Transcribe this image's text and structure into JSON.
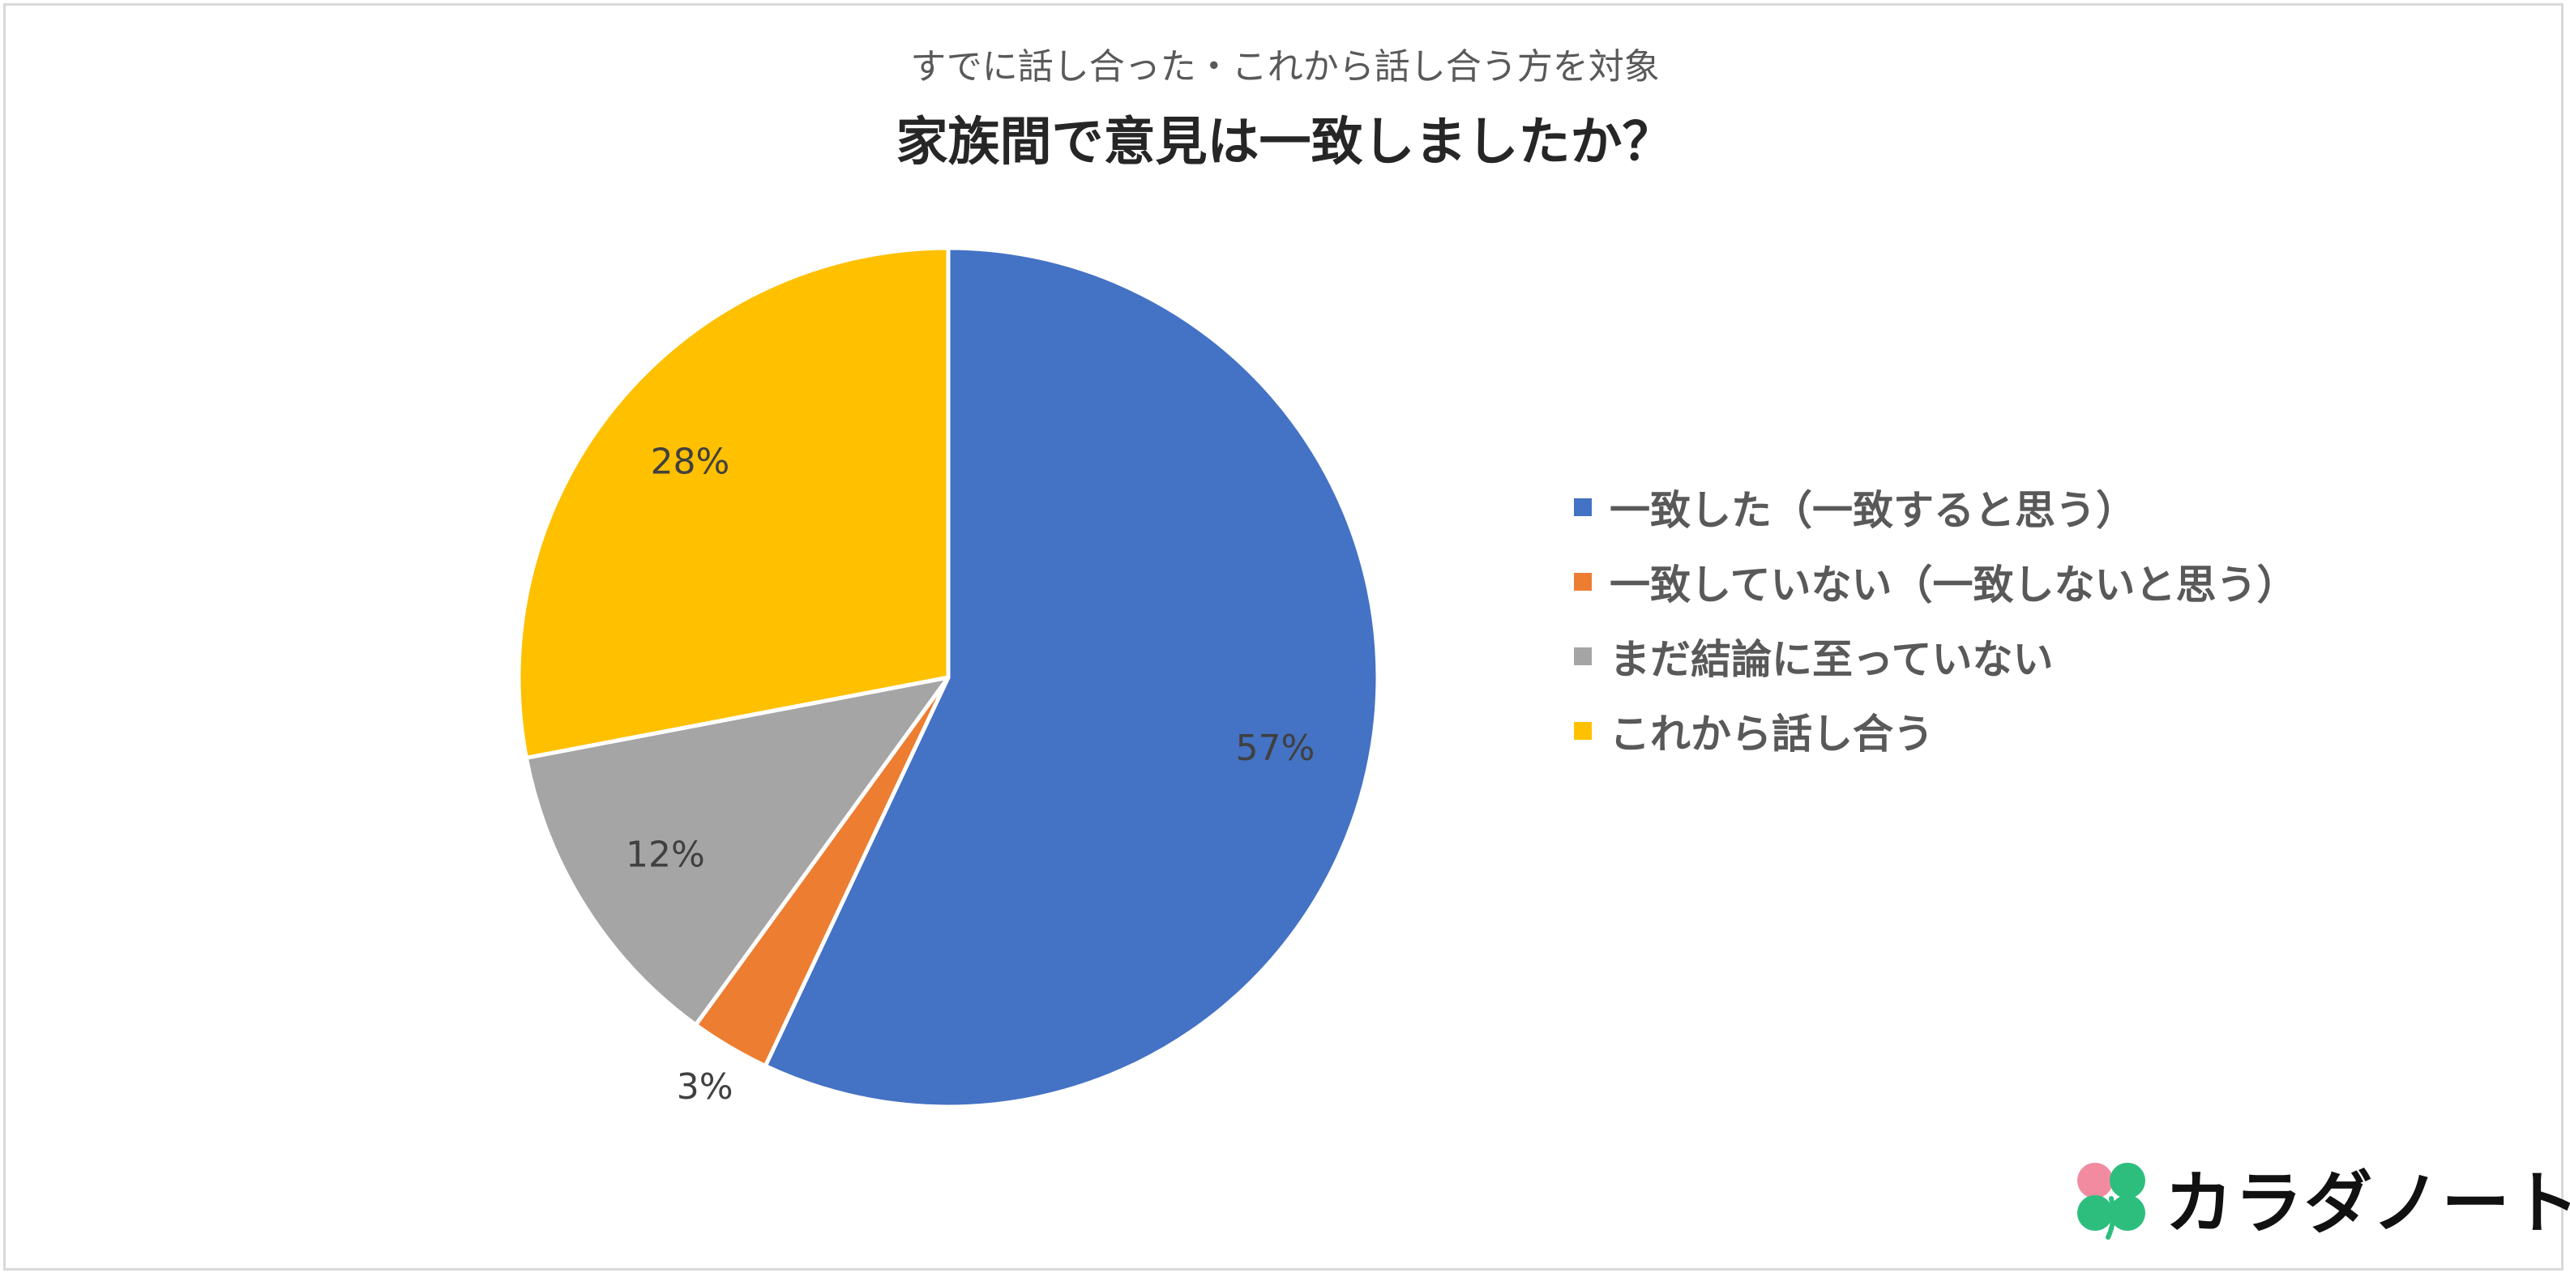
{
  "chart_data": {
    "type": "pie",
    "subtitle": "すでに話し合った・これから話し合う方を対象",
    "title": "家族間で意見は一致しましたか？",
    "slices": [
      {
        "label": "一致した（一致すると思う）",
        "value": 57,
        "data_label": "57%",
        "color": "#4472C4"
      },
      {
        "label": "一致していない（一致しないと思う）",
        "value": 3,
        "data_label": "3%",
        "color": "#ED7D31"
      },
      {
        "label": "まだ結論に至っていない",
        "value": 12,
        "data_label": "12%",
        "color": "#A5A5A5"
      },
      {
        "label": "これから話し合う",
        "value": 28,
        "data_label": "28%",
        "color": "#FFC000"
      }
    ],
    "start_angle_deg": 0,
    "direction": "clockwise",
    "legend_position": "right"
  },
  "logo": {
    "text": "カラダノート",
    "icon": "clover-icon",
    "colors": {
      "leaf_pink": "#F28BA0",
      "leaf_green": "#2DBE7E"
    }
  }
}
